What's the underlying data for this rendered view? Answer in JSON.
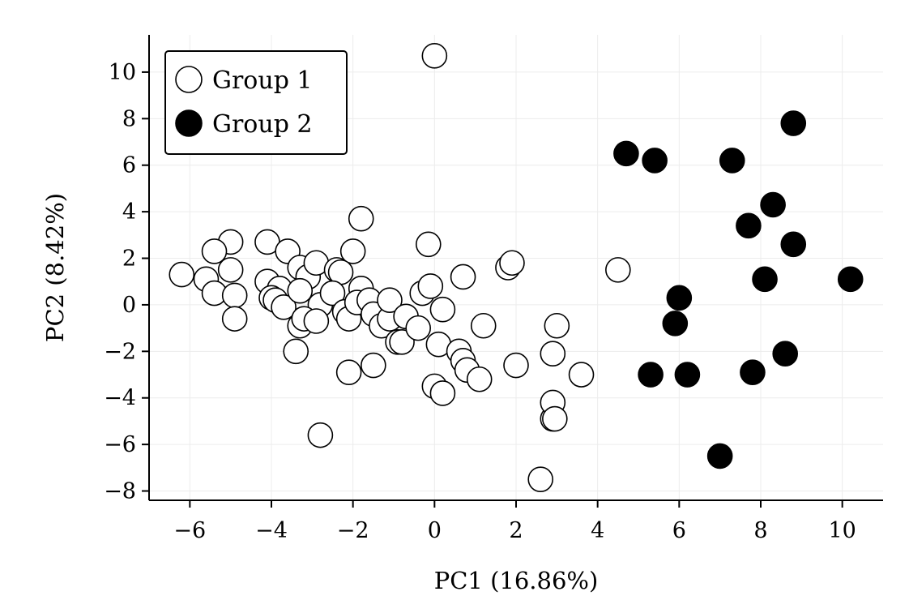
{
  "chart_data": {
    "type": "scatter",
    "xlabel": "PC1 (16.86%)",
    "ylabel": "PC2 (8.42%)",
    "xlim": [
      -7.0,
      11.0
    ],
    "ylim": [
      -8.4,
      11.6
    ],
    "xticks": [
      -6,
      -4,
      -2,
      0,
      2,
      4,
      6,
      8,
      10
    ],
    "yticks": [
      -8,
      -6,
      -4,
      -2,
      0,
      2,
      4,
      6,
      8,
      10
    ],
    "xtick_labels": [
      "−6",
      "−4",
      "−2",
      "0",
      "2",
      "4",
      "6",
      "8",
      "10"
    ],
    "ytick_labels": [
      "−8",
      "−6",
      "−4",
      "−2",
      "0",
      "2",
      "4",
      "6",
      "8",
      "10"
    ],
    "grid": true,
    "legend": "top-left",
    "series": [
      {
        "name": "Group 1",
        "fill": "#ffffff",
        "stroke": "#000000",
        "points": [
          [
            0.0,
            10.7
          ],
          [
            -1.8,
            3.7
          ],
          [
            -4.1,
            2.7
          ],
          [
            -5.0,
            2.7
          ],
          [
            -5.4,
            2.3
          ],
          [
            -3.6,
            2.3
          ],
          [
            -2.0,
            2.3
          ],
          [
            -0.15,
            2.6
          ],
          [
            -6.2,
            1.3
          ],
          [
            -5.6,
            1.1
          ],
          [
            -5.0,
            1.5
          ],
          [
            -4.1,
            1.0
          ],
          [
            -3.8,
            0.7
          ],
          [
            -3.3,
            1.6
          ],
          [
            -3.1,
            1.2
          ],
          [
            -2.9,
            1.8
          ],
          [
            -2.4,
            1.5
          ],
          [
            -2.3,
            1.4
          ],
          [
            -5.4,
            0.5
          ],
          [
            -4.9,
            0.4
          ],
          [
            -4.0,
            0.3
          ],
          [
            -3.9,
            0.2
          ],
          [
            -3.7,
            -0.1
          ],
          [
            -3.3,
            0.6
          ],
          [
            -2.8,
            0.0
          ],
          [
            -2.5,
            0.5
          ],
          [
            -2.2,
            -0.3
          ],
          [
            -2.1,
            -0.6
          ],
          [
            -1.8,
            0.7
          ],
          [
            -1.9,
            0.1
          ],
          [
            -1.6,
            0.2
          ],
          [
            -1.5,
            -0.4
          ],
          [
            -1.3,
            -0.9
          ],
          [
            -1.1,
            -0.6
          ],
          [
            -1.1,
            0.2
          ],
          [
            -0.9,
            -1.6
          ],
          [
            -0.8,
            -1.6
          ],
          [
            -0.7,
            -0.5
          ],
          [
            -0.3,
            0.5
          ],
          [
            -0.1,
            0.8
          ],
          [
            -0.4,
            -1.0
          ],
          [
            0.2,
            -0.2
          ],
          [
            0.7,
            1.2
          ],
          [
            1.8,
            1.6
          ],
          [
            1.9,
            1.8
          ],
          [
            4.5,
            1.5
          ],
          [
            -4.9,
            -0.6
          ],
          [
            -3.3,
            -0.9
          ],
          [
            -3.2,
            -0.6
          ],
          [
            -2.9,
            -0.7
          ],
          [
            -3.4,
            -2.0
          ],
          [
            -2.1,
            -2.9
          ],
          [
            -1.5,
            -2.6
          ],
          [
            0.1,
            -1.7
          ],
          [
            0.6,
            -2.0
          ],
          [
            0.7,
            -2.4
          ],
          [
            0.8,
            -2.8
          ],
          [
            1.1,
            -3.2
          ],
          [
            1.2,
            -0.9
          ],
          [
            2.0,
            -2.6
          ],
          [
            2.9,
            -2.1
          ],
          [
            3.0,
            -0.9
          ],
          [
            3.6,
            -3.0
          ],
          [
            0.0,
            -3.5
          ],
          [
            0.2,
            -3.8
          ],
          [
            2.9,
            -4.9
          ],
          [
            2.9,
            -4.2
          ],
          [
            2.95,
            -4.9
          ],
          [
            -2.8,
            -5.6
          ],
          [
            2.6,
            -7.5
          ]
        ]
      },
      {
        "name": "Group 2",
        "fill": "#000000",
        "stroke": "#000000",
        "points": [
          [
            4.7,
            6.5
          ],
          [
            5.4,
            6.2
          ],
          [
            7.3,
            6.2
          ],
          [
            8.8,
            7.8
          ],
          [
            8.3,
            4.3
          ],
          [
            7.7,
            3.4
          ],
          [
            8.8,
            2.6
          ],
          [
            8.1,
            1.1
          ],
          [
            10.2,
            1.1
          ],
          [
            6.0,
            0.3
          ],
          [
            5.9,
            -0.8
          ],
          [
            8.6,
            -2.1
          ],
          [
            5.3,
            -3.0
          ],
          [
            6.2,
            -3.0
          ],
          [
            7.8,
            -2.9
          ],
          [
            7.0,
            -6.5
          ]
        ]
      }
    ]
  }
}
